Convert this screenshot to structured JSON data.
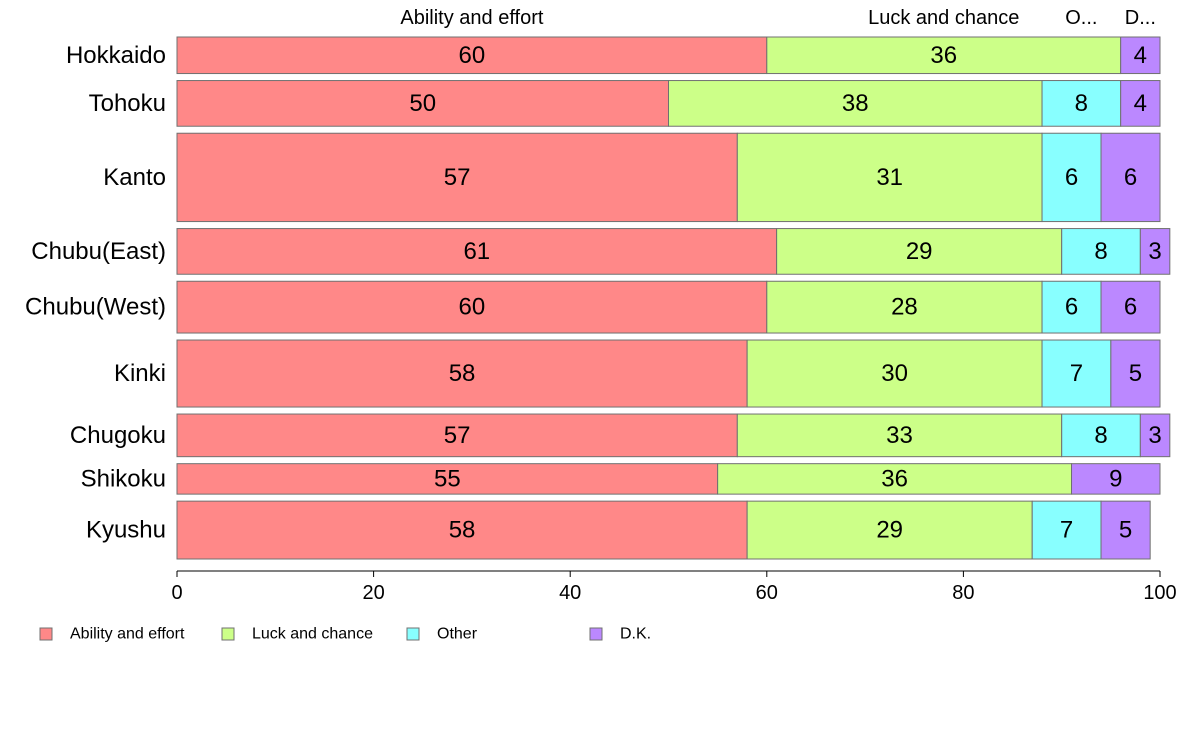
{
  "chart_data": {
    "type": "bar",
    "orientation": "horizontal",
    "stacked": true,
    "categories": [
      "Hokkaido",
      "Tohoku",
      "Kanto",
      "Chubu(East)",
      "Chubu(West)",
      "Kinki",
      "Chugoku",
      "Shikoku",
      "Kyushu"
    ],
    "series": [
      {
        "name": "Ability and effort",
        "color": "#ff8888",
        "values": [
          60,
          50,
          57,
          61,
          60,
          58,
          57,
          55,
          58
        ]
      },
      {
        "name": "Luck and chance",
        "color": "#ccff88",
        "values": [
          36,
          38,
          31,
          29,
          28,
          30,
          33,
          36,
          29
        ]
      },
      {
        "name": "Other",
        "color": "#88ffff",
        "values": [
          0,
          8,
          6,
          8,
          6,
          7,
          8,
          0,
          7
        ]
      },
      {
        "name": "D.K.",
        "color": "#bb88ff",
        "values": [
          4,
          4,
          6,
          3,
          6,
          5,
          3,
          9,
          5
        ]
      }
    ],
    "bar_heights": [
      12,
      15,
      29,
      15,
      17,
      22,
      14,
      10,
      19
    ],
    "top_labels": [
      "Ability and effort",
      "Luck and chance",
      "Other",
      "D.K."
    ],
    "top_labels_display": [
      "Ability and effort",
      "Luck and chance",
      "O...",
      "D..."
    ],
    "xlim": [
      0,
      100
    ],
    "xticks": [
      0,
      20,
      40,
      60,
      80,
      100
    ],
    "xlabel": "",
    "ylabel": "",
    "grid": false,
    "legend": {
      "position": "bottom-left",
      "entries": [
        "Ability and effort",
        "Luck and chance",
        "Other",
        "D.K."
      ]
    }
  }
}
